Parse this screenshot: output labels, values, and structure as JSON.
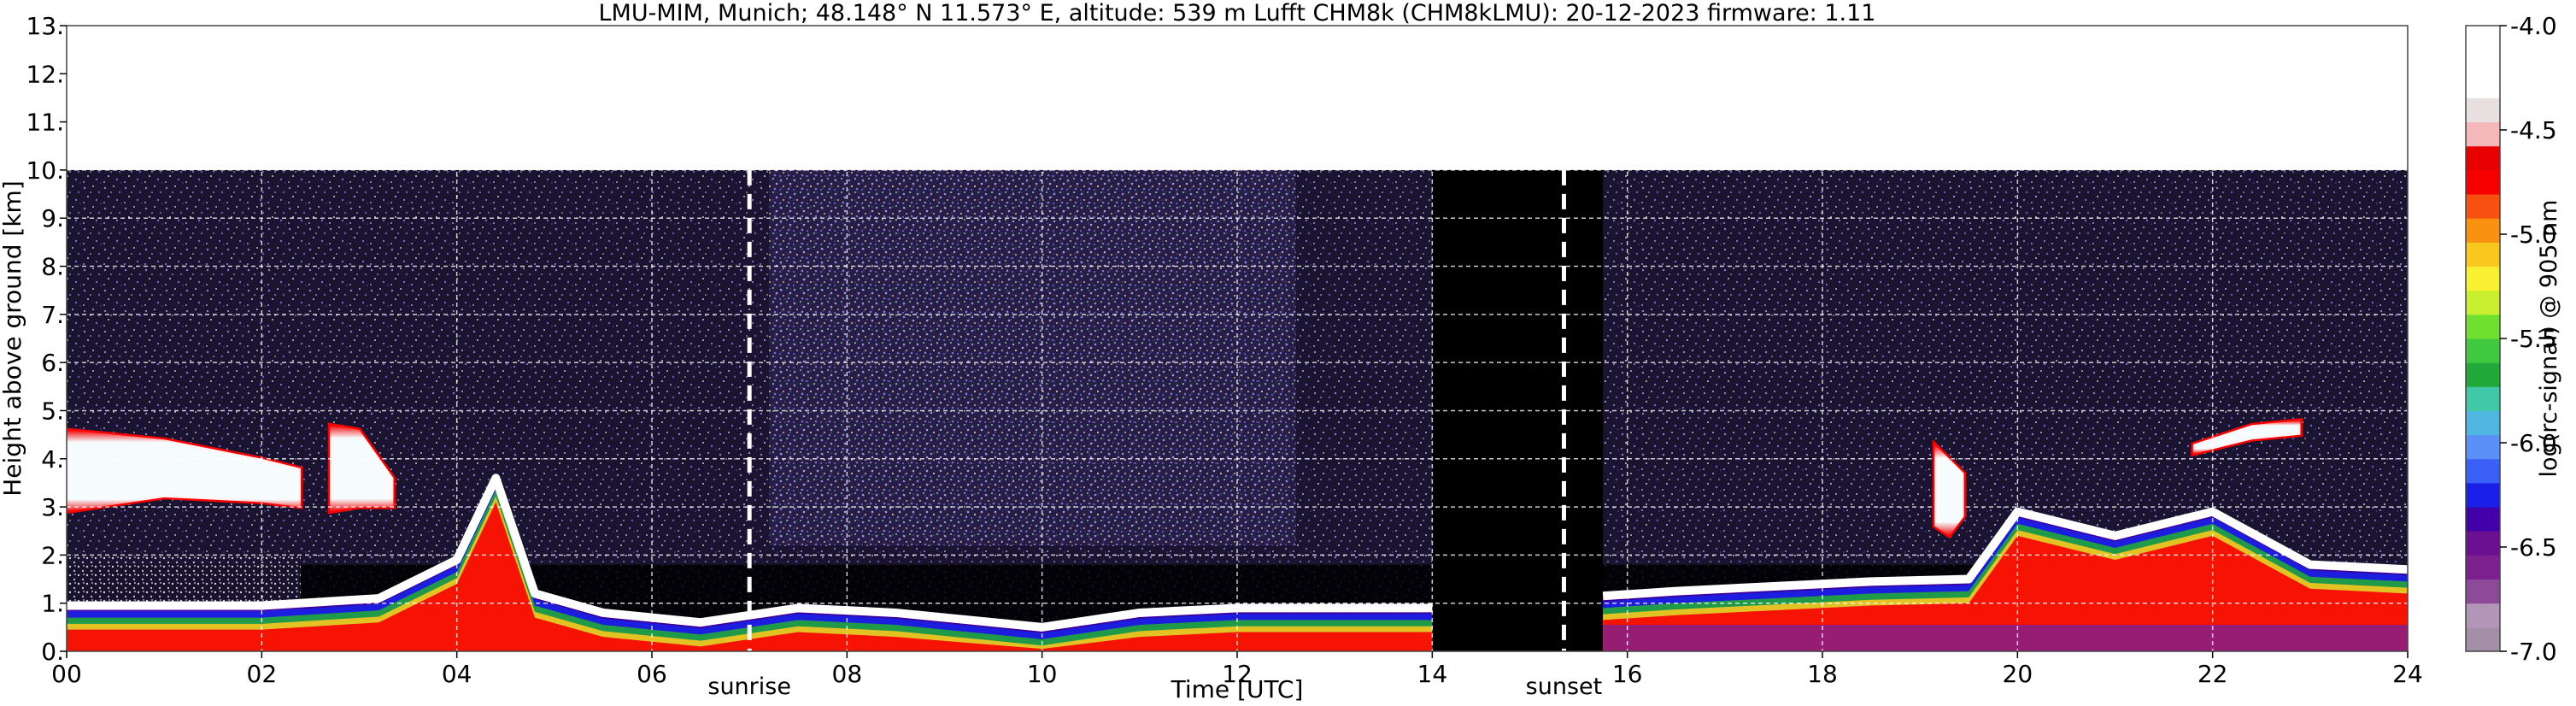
{
  "chart_data": {
    "type": "heatmap",
    "title": "LMU-MIM, Munich; 48.148° N 11.573° E, altitude: 539 m    Lufft CHM8k (CHM8kLMU): 20-12-2023    firmware: 1.11",
    "xlabel": "Time [UTC]",
    "ylabel": "Height above ground [km]",
    "xlim": [
      0,
      24
    ],
    "ylim": [
      0,
      13
    ],
    "x_ticks": [
      0,
      2,
      4,
      6,
      8,
      10,
      12,
      14,
      16,
      18,
      20,
      22,
      24
    ],
    "x_tick_labels": [
      "00",
      "02",
      "04",
      "06",
      "08",
      "10",
      "12",
      "14",
      "16",
      "18",
      "20",
      "22",
      "24"
    ],
    "y_ticks": [
      0,
      1,
      2,
      3,
      4,
      5,
      6,
      7,
      8,
      9,
      10,
      11,
      12,
      13
    ],
    "y_tick_labels": [
      "0.",
      "1.",
      "2.",
      "3.",
      "4.",
      "5.",
      "6.",
      "7.",
      "8.",
      "9.",
      "10.",
      "11.",
      "12.",
      "13."
    ],
    "grid": true,
    "measurement_top_km": 10,
    "data_gap": [
      14.0,
      15.75
    ],
    "annotations": [
      {
        "text": "sunrise",
        "x": 7.0
      },
      {
        "text": "sunset",
        "x": 15.35
      }
    ],
    "colorbar": {
      "label": "log(rc-signal) @ 905 nm",
      "range": [
        -7.0,
        -4.0
      ],
      "ticks": [
        -4.0,
        -4.5,
        -5.0,
        -5.5,
        -6.0,
        -6.5,
        -7.0
      ],
      "tick_labels": [
        "-4.0",
        "-4.5",
        "-5.0",
        "-5.5",
        "-6.0",
        "-6.5",
        "-7.0"
      ],
      "colors": [
        "#a390a8",
        "#b395b8",
        "#8d4a98",
        "#7d2090",
        "#6a1090",
        "#4400a8",
        "#1a20e8",
        "#3a60f8",
        "#5a90f8",
        "#50b8e0",
        "#40c8a8",
        "#20a838",
        "#40c840",
        "#70e030",
        "#c8f030",
        "#f8f030",
        "#f8c820",
        "#f89010",
        "#f85010",
        "#f80000",
        "#e80000",
        "#f4b8b8",
        "#e8e0e0",
        "#ffffff",
        "#ffffff",
        "#ffffff"
      ]
    },
    "cloud_layers": [
      {
        "name": "mid cloud",
        "x": [
          0.0,
          1.0,
          2.0,
          2.4
        ],
        "bottom": [
          2.9,
          3.2,
          3.1,
          3.0
        ],
        "top": [
          4.6,
          4.4,
          4.0,
          3.8
        ]
      },
      {
        "name": "mid cloud",
        "x": [
          2.7,
          3.0,
          3.35
        ],
        "bottom": [
          2.9,
          3.0,
          3.0
        ],
        "top": [
          4.7,
          4.6,
          3.6
        ]
      },
      {
        "name": "mid cloud",
        "x": [
          19.15,
          19.3,
          19.45
        ],
        "bottom": [
          2.6,
          2.4,
          2.8
        ],
        "top": [
          4.3,
          4.0,
          3.7
        ]
      },
      {
        "name": "high cloud",
        "x": [
          21.8,
          22.4,
          22.9
        ],
        "bottom": [
          4.1,
          4.4,
          4.5
        ],
        "top": [
          4.3,
          4.7,
          4.8
        ]
      }
    ],
    "boundary_layer_top_km": {
      "x": [
        0,
        2,
        2.4,
        3.2,
        4.0,
        4.4,
        4.8,
        5.5,
        6.5,
        7.5,
        8.5,
        10,
        11,
        12,
        13,
        14,
        15.75,
        16.5,
        17.5,
        18.5,
        19.5,
        20.0,
        21.0,
        22.0,
        23.0,
        24.0
      ],
      "values": [
        0.95,
        0.95,
        1.0,
        1.1,
        1.9,
        3.6,
        1.2,
        0.8,
        0.6,
        0.9,
        0.8,
        0.5,
        0.8,
        0.9,
        0.9,
        0.9,
        1.15,
        1.25,
        1.35,
        1.45,
        1.5,
        2.9,
        2.4,
        2.9,
        1.8,
        1.7
      ]
    }
  }
}
